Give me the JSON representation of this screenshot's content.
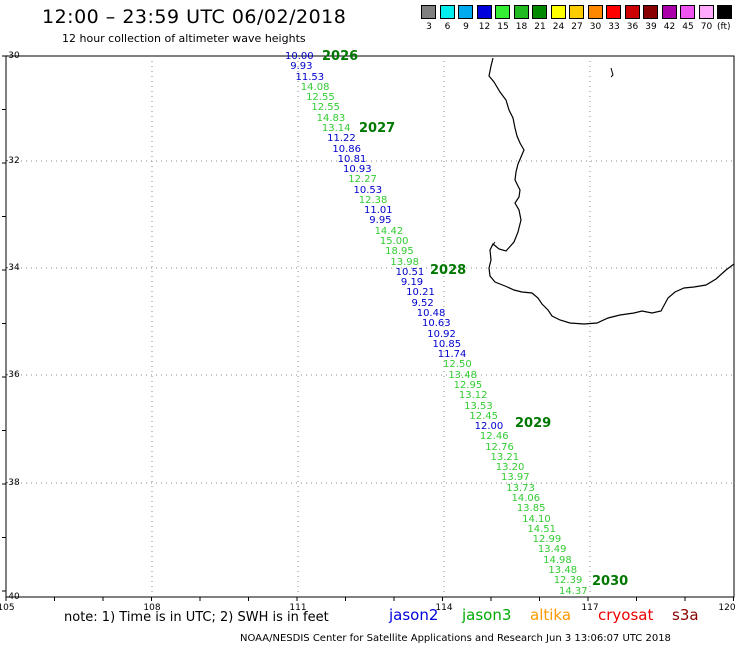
{
  "header": {
    "title": "12:00 – 23:59 UTC 06/02/2018",
    "subtitle": "12 hour collection of altimeter wave heights"
  },
  "scale": {
    "unit": "(ft)",
    "items": [
      {
        "label": "3",
        "color": "#808080"
      },
      {
        "label": "6",
        "color": "#00eeee"
      },
      {
        "label": "9",
        "color": "#00aaee"
      },
      {
        "label": "12",
        "color": "#0000dd"
      },
      {
        "label": "15",
        "color": "#33ee33"
      },
      {
        "label": "18",
        "color": "#22bb22"
      },
      {
        "label": "21",
        "color": "#008800"
      },
      {
        "label": "24",
        "color": "#ffff00"
      },
      {
        "label": "27",
        "color": "#ffcc00"
      },
      {
        "label": "30",
        "color": "#ff8800"
      },
      {
        "label": "33",
        "color": "#ff0000"
      },
      {
        "label": "36",
        "color": "#cc0000"
      },
      {
        "label": "39",
        "color": "#880000"
      },
      {
        "label": "42",
        "color": "#aa00aa"
      },
      {
        "label": "45",
        "color": "#ee55ee"
      },
      {
        "label": "70",
        "color": "#ffaaff"
      },
      {
        "label": "",
        "color": "#000000"
      }
    ]
  },
  "map": {
    "lon_labels": [
      "105",
      "108",
      "111",
      "114",
      "117",
      "120"
    ],
    "lat_labels": [
      "-30",
      "-32",
      "-34",
      "-36",
      "-38",
      "-40"
    ]
  },
  "track": {
    "colors": {
      "jason2": "#0000cc",
      "jason3": "#33cc33"
    },
    "time_labels": [
      {
        "text": "2026"
      },
      {
        "text": "2027"
      },
      {
        "text": "2028"
      },
      {
        "text": "2029"
      },
      {
        "text": "2030"
      }
    ],
    "readings": [
      {
        "v": "10.00",
        "sat": "jason2"
      },
      {
        "v": "9.93",
        "sat": "jason2"
      },
      {
        "v": "11.53",
        "sat": "jason2"
      },
      {
        "v": "14.08",
        "sat": "jason3"
      },
      {
        "v": "12.55",
        "sat": "jason3"
      },
      {
        "v": "12.55",
        "sat": "jason3"
      },
      {
        "v": "14.83",
        "sat": "jason3"
      },
      {
        "v": "13.14",
        "sat": "jason3"
      },
      {
        "v": "11.22",
        "sat": "jason2"
      },
      {
        "v": "10.86",
        "sat": "jason2"
      },
      {
        "v": "10.81",
        "sat": "jason2"
      },
      {
        "v": "10.93",
        "sat": "jason2"
      },
      {
        "v": "12.27",
        "sat": "jason3"
      },
      {
        "v": "10.53",
        "sat": "jason2"
      },
      {
        "v": "12.38",
        "sat": "jason3"
      },
      {
        "v": "11.01",
        "sat": "jason2"
      },
      {
        "v": "9.95",
        "sat": "jason2"
      },
      {
        "v": "14.42",
        "sat": "jason3"
      },
      {
        "v": "15.00",
        "sat": "jason3"
      },
      {
        "v": "18.95",
        "sat": "jason3"
      },
      {
        "v": "13.98",
        "sat": "jason3"
      },
      {
        "v": "10.51",
        "sat": "jason2"
      },
      {
        "v": "9.19",
        "sat": "jason2"
      },
      {
        "v": "10.21",
        "sat": "jason2"
      },
      {
        "v": "9.52",
        "sat": "jason2"
      },
      {
        "v": "10.48",
        "sat": "jason2"
      },
      {
        "v": "10.63",
        "sat": "jason2"
      },
      {
        "v": "10.92",
        "sat": "jason2"
      },
      {
        "v": "10.85",
        "sat": "jason2"
      },
      {
        "v": "11.74",
        "sat": "jason2"
      },
      {
        "v": "12.50",
        "sat": "jason3"
      },
      {
        "v": "13.48",
        "sat": "jason3"
      },
      {
        "v": "12.95",
        "sat": "jason3"
      },
      {
        "v": "13.12",
        "sat": "jason3"
      },
      {
        "v": "13.53",
        "sat": "jason3"
      },
      {
        "v": "12.45",
        "sat": "jason3"
      },
      {
        "v": "12.00",
        "sat": "jason2"
      },
      {
        "v": "12.46",
        "sat": "jason3"
      },
      {
        "v": "12.76",
        "sat": "jason3"
      },
      {
        "v": "13.21",
        "sat": "jason3"
      },
      {
        "v": "13.20",
        "sat": "jason3"
      },
      {
        "v": "13.97",
        "sat": "jason3"
      },
      {
        "v": "13.73",
        "sat": "jason3"
      },
      {
        "v": "14.06",
        "sat": "jason3"
      },
      {
        "v": "13.85",
        "sat": "jason3"
      },
      {
        "v": "14.10",
        "sat": "jason3"
      },
      {
        "v": "14.51",
        "sat": "jason3"
      },
      {
        "v": "12.99",
        "sat": "jason3"
      },
      {
        "v": "13.49",
        "sat": "jason3"
      },
      {
        "v": "14.98",
        "sat": "jason3"
      },
      {
        "v": "13.48",
        "sat": "jason3"
      },
      {
        "v": "12.39",
        "sat": "jason3"
      },
      {
        "v": "14.37",
        "sat": "jason3"
      }
    ]
  },
  "footer": {
    "note": "note:  1) Time is in UTC;  2) SWH is in feet",
    "satellites": [
      {
        "name": "jason2",
        "color": "#0000dd"
      },
      {
        "name": "jason3",
        "color": "#00aa00"
      },
      {
        "name": "altika",
        "color": "#ff9900"
      },
      {
        "name": "cryosat",
        "color": "#ee0000"
      },
      {
        "name": "s3a",
        "color": "#880000"
      }
    ],
    "credit": "NOAA/NESDIS Center for Satellite Applications and Research    Jun  3 13:06:07 UTC 2018"
  }
}
